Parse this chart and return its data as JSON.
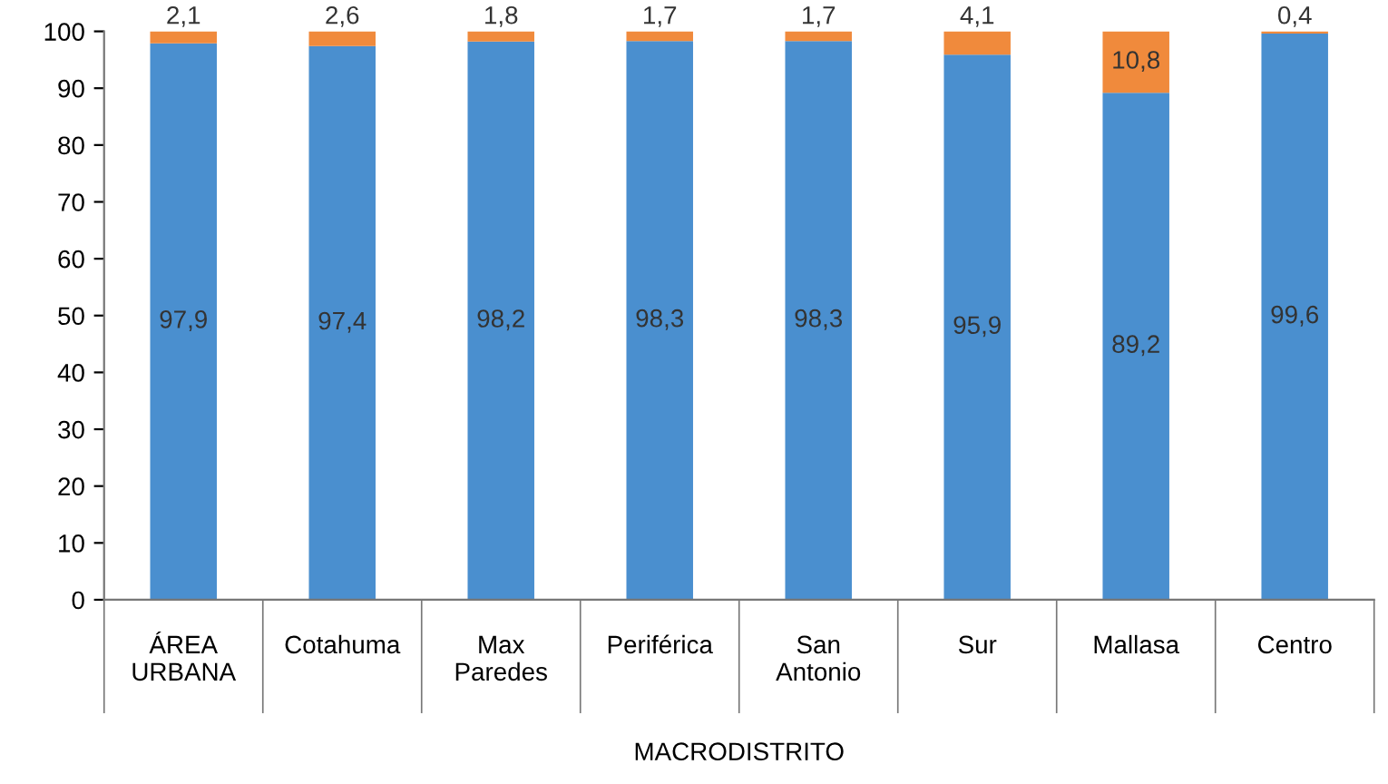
{
  "chart_data": {
    "type": "bar",
    "stacked": true,
    "xlabel": "MACRODISTRITO",
    "categories": [
      "ÁREA URBANA",
      "Cotahuma",
      "Max Paredes",
      "Periférica",
      "San Antonio",
      "Sur",
      "Mallasa",
      "Centro"
    ],
    "series": [
      {
        "color": "#4a8fcf",
        "values": [
          97.9,
          97.4,
          98.2,
          98.3,
          98.3,
          95.9,
          89.2,
          99.6
        ],
        "value_labels": [
          "97,9",
          "97,4",
          "98,2",
          "98,3",
          "98,3",
          "95,9",
          "89,2",
          "99,6"
        ]
      },
      {
        "color": "#f08a3c",
        "values": [
          2.1,
          2.6,
          1.8,
          1.7,
          1.7,
          4.1,
          10.8,
          0.4
        ],
        "value_labels": [
          "2,1",
          "2,6",
          "1,8",
          "1,7",
          "1,7",
          "4,1",
          "10,8",
          "0,4"
        ]
      }
    ],
    "ylim": [
      0,
      100
    ],
    "yticks": [
      0,
      10,
      20,
      30,
      40,
      50,
      60,
      70,
      80,
      90,
      100
    ],
    "grid": false,
    "legend": false
  }
}
